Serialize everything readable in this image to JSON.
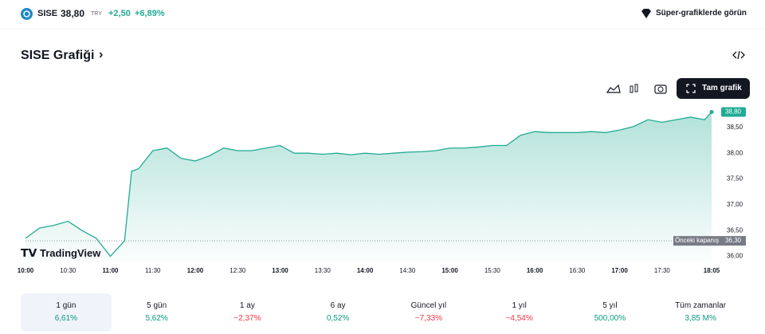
{
  "header": {
    "symbol": "SISE",
    "price": "38,80",
    "currency": "TRY",
    "change": "+2,50",
    "change_pct": "+6,89%",
    "super_charts": "Süper-grafiklerde görün"
  },
  "title": "SISE Grafiği",
  "full_chart": "Tam grafik",
  "watermark": "TradingView",
  "chart_data": {
    "type": "area",
    "color": "#22ab94",
    "x": [
      "10:00",
      "10:10",
      "10:20",
      "10:30",
      "10:40",
      "10:50",
      "11:00",
      "11:10",
      "11:15",
      "11:20",
      "11:30",
      "11:40",
      "11:50",
      "12:00",
      "12:10",
      "12:20",
      "12:30",
      "12:40",
      "12:50",
      "13:00",
      "13:10",
      "13:20",
      "13:30",
      "13:40",
      "13:50",
      "14:00",
      "14:10",
      "14:20",
      "14:30",
      "14:40",
      "14:50",
      "15:00",
      "15:10",
      "15:20",
      "15:30",
      "15:40",
      "15:50",
      "16:00",
      "16:10",
      "16:20",
      "16:30",
      "16:40",
      "16:50",
      "17:00",
      "17:10",
      "17:20",
      "17:30",
      "17:40",
      "17:50",
      "18:00",
      "18:05"
    ],
    "values": [
      36.35,
      36.55,
      36.6,
      36.68,
      36.5,
      36.35,
      36.0,
      36.3,
      37.65,
      37.7,
      38.05,
      38.1,
      37.9,
      37.85,
      37.95,
      38.1,
      38.05,
      38.05,
      38.1,
      38.15,
      38.0,
      38.0,
      37.98,
      38.0,
      37.97,
      38.0,
      37.98,
      38.0,
      38.02,
      38.03,
      38.05,
      38.1,
      38.1,
      38.12,
      38.15,
      38.15,
      38.35,
      38.42,
      38.4,
      38.4,
      38.4,
      38.42,
      38.4,
      38.45,
      38.52,
      38.65,
      38.6,
      38.65,
      38.7,
      38.65,
      38.8
    ],
    "ylim": [
      35.9,
      38.9
    ],
    "yticks": [
      {
        "value": 36,
        "label": "36,00"
      },
      {
        "value": 36.5,
        "label": "36,50"
      },
      {
        "value": 37,
        "label": "37,00"
      },
      {
        "value": 37.5,
        "label": "37,50"
      },
      {
        "value": 38,
        "label": "38,00"
      },
      {
        "value": 38.5,
        "label": "38,50"
      }
    ],
    "xticks": [
      "10:00",
      "10:30",
      "11:00",
      "11:30",
      "12:00",
      "12:30",
      "13:00",
      "13:30",
      "14:00",
      "14:30",
      "15:00",
      "15:30",
      "16:00",
      "16:30",
      "17:00",
      "17:30",
      "18:05"
    ],
    "last_price": {
      "value": 38.8,
      "label": "38,80"
    },
    "prev_close": {
      "name": "Önceki kapanış",
      "value": 36.3,
      "label": "36,30"
    }
  },
  "ranges": [
    {
      "label": "1 gün",
      "change": "6,61%"
    },
    {
      "label": "5 gün",
      "change": "5,62%"
    },
    {
      "label": "1 ay",
      "change": "−2,37%"
    },
    {
      "label": "6 ay",
      "change": "0,52%"
    },
    {
      "label": "Güncel yıl",
      "change": "−7,33%"
    },
    {
      "label": "1 yıl",
      "change": "−4,54%"
    },
    {
      "label": "5 yıl",
      "change": "500,00%"
    },
    {
      "label": "Tüm zamanlar",
      "change": "3,85 M%"
    }
  ]
}
